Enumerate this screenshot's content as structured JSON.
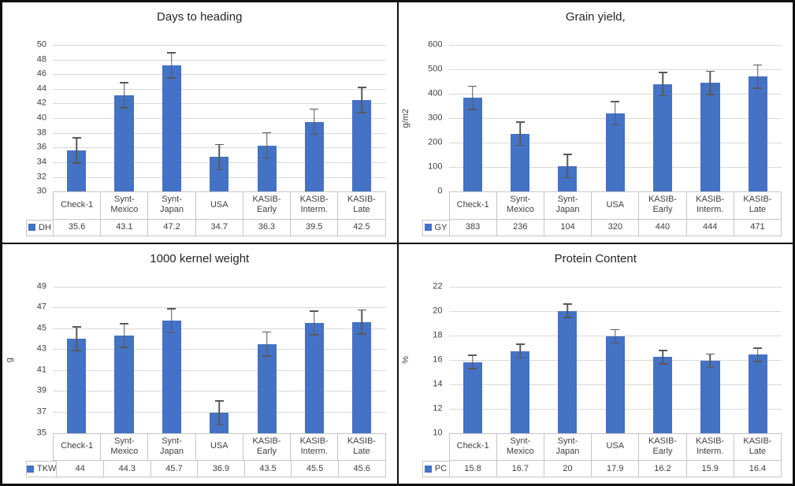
{
  "figure": {
    "layout": "2x2 grid of bar charts, each with an attached data table and legend key",
    "panel_titles": [
      "Days to heading",
      "Grain yield,",
      "1000 kernel weight",
      "Protein Content"
    ]
  },
  "colors": {
    "bar_fill": "#4472C4",
    "error_bar": "#595959",
    "gridline": "#D9D9D9",
    "table_border": "#C6C6C6",
    "axis_text": "#404040",
    "title_text": "#262626",
    "panel_border": "#0D0D0D",
    "background": "#FFFFFF"
  },
  "category_lines": [
    [
      "Check-1"
    ],
    [
      "Synt-",
      "Mexico"
    ],
    [
      "Synt-",
      "Japan"
    ],
    [
      "USA"
    ],
    [
      "KASIB-",
      "Early"
    ],
    [
      "KASIB-",
      "Interm."
    ],
    [
      "KASIB-",
      "Late"
    ]
  ],
  "chart_data": [
    {
      "type": "bar",
      "title": "Days to heading",
      "legend_key": "DH",
      "categories": [
        "Check-1",
        "Synt-Mexico",
        "Synt-Japan",
        "USA",
        "KASIB-Early",
        "KASIB-Interm.",
        "KASIB-Late"
      ],
      "values": [
        35.6,
        43.1,
        47.2,
        34.7,
        36.3,
        39.5,
        42.5
      ],
      "value_labels": [
        "35.6",
        "43.1",
        "47.2",
        "34.7",
        "36.3",
        "39.5",
        "42.5"
      ],
      "error_bar": 1.8,
      "xlabel": "",
      "ylabel": "",
      "ylim": [
        30,
        50
      ],
      "ytick_step": 2,
      "grid": true,
      "legend_position": "table-left",
      "bar_color": "#4472C4"
    },
    {
      "type": "bar",
      "title": "Grain yield,",
      "legend_key": "GY",
      "categories": [
        "Check-1",
        "Synt-Mexico",
        "Synt-Japan",
        "USA",
        "KASIB-Early",
        "KASIB-Interm.",
        "KASIB-Late"
      ],
      "values": [
        383,
        236,
        104,
        320,
        440,
        444,
        471
      ],
      "value_labels": [
        "383",
        "236",
        "104",
        "320",
        "440",
        "444",
        "471"
      ],
      "error_bar": 50,
      "xlabel": "",
      "ylabel": "g/m2",
      "ylim": [
        0,
        600
      ],
      "ytick_step": 100,
      "grid": true,
      "legend_position": "table-left",
      "bar_color": "#4472C4"
    },
    {
      "type": "bar",
      "title": "1000 kernel weight",
      "legend_key": "TKW",
      "categories": [
        "Check-1",
        "Synt-Mexico",
        "Synt-Japan",
        "USA",
        "KASIB-Early",
        "KASIB-Interm.",
        "KASIB-Late"
      ],
      "values": [
        44,
        44.3,
        45.7,
        36.9,
        43.5,
        45.5,
        45.6
      ],
      "value_labels": [
        "44",
        "44.3",
        "45.7",
        "36.9",
        "43.5",
        "45.5",
        "45.6"
      ],
      "error_bar": 1.2,
      "xlabel": "",
      "ylabel": "g",
      "ylim": [
        35,
        49
      ],
      "ytick_step": 2,
      "grid": true,
      "legend_position": "table-left",
      "bar_color": "#4472C4"
    },
    {
      "type": "bar",
      "title": "Protein Content",
      "legend_key": "PC",
      "categories": [
        "Check-1",
        "Synt-Mexico",
        "Synt-Japan",
        "USA",
        "KASIB-Early",
        "KASIB-Interm.",
        "KASIB-Late"
      ],
      "values": [
        15.8,
        16.7,
        20,
        17.9,
        16.2,
        15.9,
        16.4
      ],
      "value_labels": [
        "15.8",
        "16.7",
        "20",
        "17.9",
        "16.2",
        "15.9",
        "16.4"
      ],
      "error_bar": 0.6,
      "xlabel": "",
      "ylabel": "%",
      "ylim": [
        10,
        22
      ],
      "ytick_step": 2,
      "grid": true,
      "legend_position": "table-left",
      "bar_color": "#4472C4"
    }
  ]
}
